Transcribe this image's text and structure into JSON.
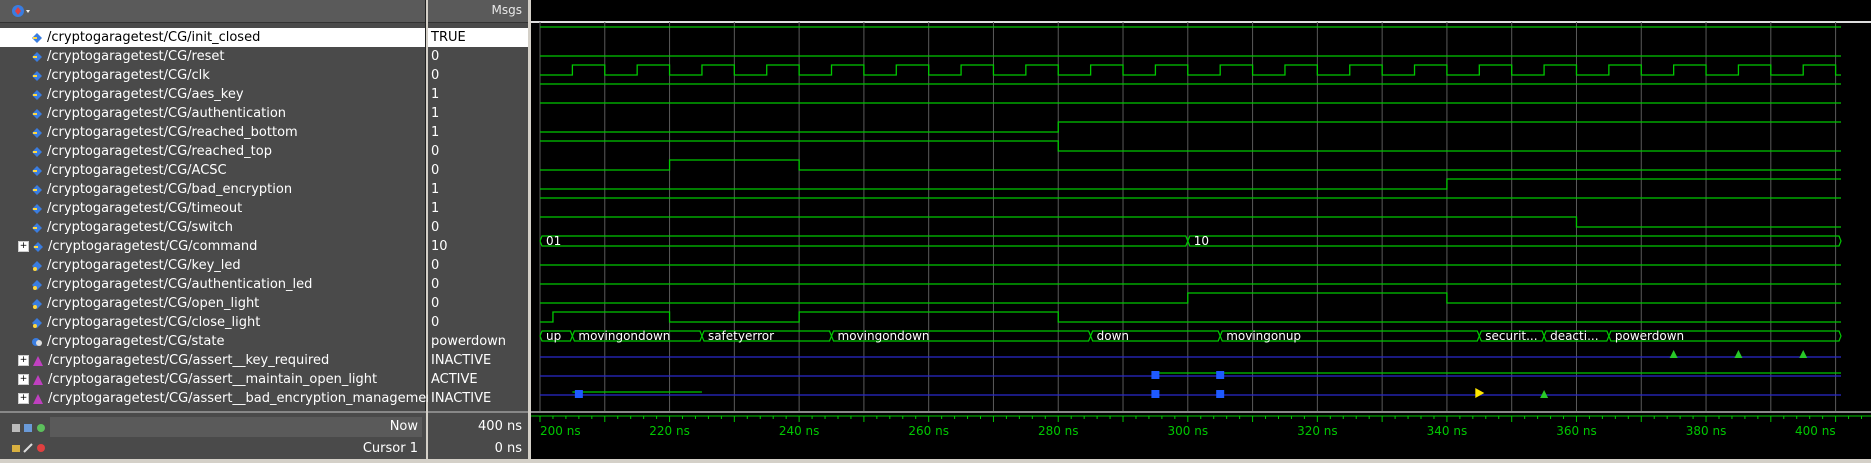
{
  "header": {
    "msgs_label": "Msgs"
  },
  "signals": [
    {
      "name": "/cryptogaragetest/CG/init_closed",
      "value": "TRUE",
      "kind": "input",
      "expandable": false,
      "selected": true
    },
    {
      "name": "/cryptogaragetest/CG/reset",
      "value": "0",
      "kind": "input",
      "expandable": false
    },
    {
      "name": "/cryptogaragetest/CG/clk",
      "value": "0",
      "kind": "input",
      "expandable": false
    },
    {
      "name": "/cryptogaragetest/CG/aes_key",
      "value": "1",
      "kind": "input",
      "expandable": false
    },
    {
      "name": "/cryptogaragetest/CG/authentication",
      "value": "1",
      "kind": "input",
      "expandable": false
    },
    {
      "name": "/cryptogaragetest/CG/reached_bottom",
      "value": "1",
      "kind": "input",
      "expandable": false
    },
    {
      "name": "/cryptogaragetest/CG/reached_top",
      "value": "0",
      "kind": "input",
      "expandable": false
    },
    {
      "name": "/cryptogaragetest/CG/ACSC",
      "value": "0",
      "kind": "input",
      "expandable": false
    },
    {
      "name": "/cryptogaragetest/CG/bad_encryption",
      "value": "1",
      "kind": "input",
      "expandable": false
    },
    {
      "name": "/cryptogaragetest/CG/timeout",
      "value": "1",
      "kind": "input",
      "expandable": false
    },
    {
      "name": "/cryptogaragetest/CG/switch",
      "value": "0",
      "kind": "input",
      "expandable": false
    },
    {
      "name": "/cryptogaragetest/CG/command",
      "value": "10",
      "kind": "input",
      "expandable": true
    },
    {
      "name": "/cryptogaragetest/CG/key_led",
      "value": "0",
      "kind": "output",
      "expandable": false
    },
    {
      "name": "/cryptogaragetest/CG/authentication_led",
      "value": "0",
      "kind": "output",
      "expandable": false
    },
    {
      "name": "/cryptogaragetest/CG/open_light",
      "value": "0",
      "kind": "output",
      "expandable": false
    },
    {
      "name": "/cryptogaragetest/CG/close_light",
      "value": "0",
      "kind": "output",
      "expandable": false
    },
    {
      "name": "/cryptogaragetest/CG/state",
      "value": "powerdown",
      "kind": "state",
      "expandable": false
    },
    {
      "name": "/cryptogaragetest/CG/assert__key_required",
      "value": "INACTIVE",
      "kind": "assert",
      "expandable": true
    },
    {
      "name": "/cryptogaragetest/CG/assert__maintain_open_light",
      "value": "ACTIVE",
      "kind": "assert",
      "expandable": true
    },
    {
      "name": "/cryptogaragetest/CG/assert__bad_encryption_management",
      "value": "INACTIVE",
      "kind": "assert",
      "expandable": true
    }
  ],
  "footer": {
    "now_label": "Now",
    "now_value": "400 ns",
    "cursor_label": "Cursor 1",
    "cursor_value": "0 ns"
  },
  "timeline": {
    "start_ns": 200,
    "end_ns": 404,
    "tick_labels": [
      "200 ns",
      "220 ns",
      "240 ns",
      "260 ns",
      "280 ns",
      "300 ns",
      "320 ns",
      "340 ns",
      "360 ns",
      "380 ns",
      "400 ns"
    ],
    "tick_values": [
      200,
      220,
      240,
      260,
      280,
      300,
      320,
      340,
      360,
      380,
      400
    ]
  },
  "bus_labels": {
    "command": [
      {
        "t": 200,
        "label": "01"
      },
      {
        "t": 300,
        "label": "10"
      }
    ],
    "state": [
      {
        "t": 200,
        "label": "up"
      },
      {
        "t": 205,
        "label": "movingondown"
      },
      {
        "t": 225,
        "label": "safetyerror"
      },
      {
        "t": 245,
        "label": "movingondown"
      },
      {
        "t": 285,
        "label": "down"
      },
      {
        "t": 305,
        "label": "movingonup"
      },
      {
        "t": 345,
        "label": "securit..."
      },
      {
        "t": 355,
        "label": "deacti..."
      },
      {
        "t": 365,
        "label": "powerdown"
      }
    ]
  },
  "colors": {
    "wave": "#00c800",
    "grid": "#5a5a5a",
    "blue": "#1e5aff",
    "yellow": "#ffe600",
    "assert_blue": "#2a2acc"
  }
}
